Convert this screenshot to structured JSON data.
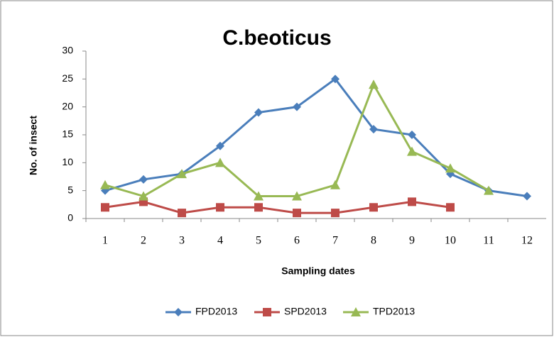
{
  "chart_data": {
    "type": "line",
    "title": "C.beoticus",
    "x_label": "Sampling dates",
    "y_label": "No. of insect",
    "categories": [
      "1",
      "2",
      "3",
      "4",
      "5",
      "6",
      "7",
      "8",
      "9",
      "10",
      "11",
      "12"
    ],
    "series": [
      {
        "name": "FPD2013",
        "color": "#4a7ebb",
        "marker": "diamond",
        "values": [
          5,
          7,
          8,
          13,
          19,
          20,
          25,
          16,
          15,
          8,
          5,
          4
        ]
      },
      {
        "name": "SPD2013",
        "color": "#be4b48",
        "marker": "square",
        "values": [
          2,
          3,
          1,
          2,
          2,
          1,
          1,
          2,
          3,
          2,
          null,
          null
        ]
      },
      {
        "name": "TPD2013",
        "color": "#98b954",
        "marker": "triangle",
        "values": [
          6,
          4,
          8,
          10,
          4,
          4,
          6,
          24,
          12,
          9,
          5,
          null
        ]
      }
    ],
    "ylim": [
      0,
      30
    ],
    "yticks": [
      0,
      5,
      10,
      15,
      20,
      25,
      30
    ],
    "legend": "bottom"
  }
}
